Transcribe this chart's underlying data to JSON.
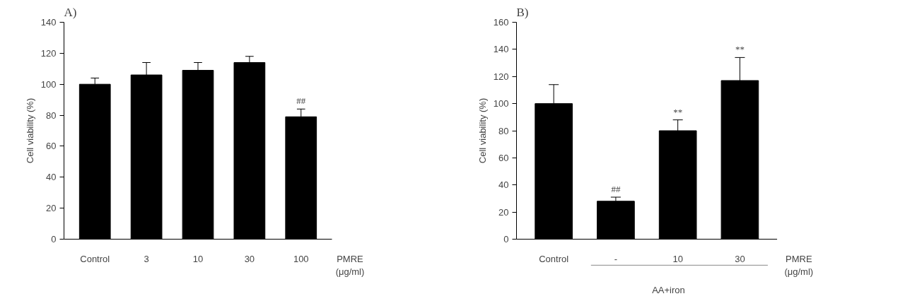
{
  "chart_data": [
    {
      "type": "bar",
      "title": "A)",
      "ylabel": "Cell viability (%)",
      "categories": [
        "Control",
        "3",
        "10",
        "30",
        "100"
      ],
      "values": [
        100,
        106,
        109,
        114,
        79
      ],
      "errors": [
        [
          100,
          104
        ],
        [
          106,
          114
        ],
        [
          109,
          114
        ],
        [
          114,
          118
        ],
        [
          79,
          84
        ]
      ],
      "color": "#000000",
      "ylim": [
        0,
        140
      ],
      "yticks": [
        0,
        20,
        40,
        60,
        80,
        100,
        120,
        140
      ],
      "grid": false,
      "annotations": [
        {
          "text": "##",
          "x": "100",
          "y": 84
        },
        "PMRE\n(μg/ml)"
      ]
    },
    {
      "type": "bar",
      "title": "B)",
      "ylabel": "Cell viability (%)",
      "categories": [
        "Control",
        "-",
        "10",
        "30"
      ],
      "values": [
        100,
        28,
        80,
        117
      ],
      "errors": [
        [
          100,
          114
        ],
        [
          28,
          31
        ],
        [
          80,
          88
        ],
        [
          117,
          134
        ]
      ],
      "color": "#000000",
      "ylim": [
        0,
        160
      ],
      "yticks": [
        0,
        20,
        40,
        60,
        80,
        100,
        120,
        140,
        160
      ],
      "grid": false,
      "annotations": [
        {
          "text": "##",
          "x": "-",
          "y": 31
        },
        {
          "text": "**",
          "x": "10",
          "y": 88
        },
        {
          "text": "**",
          "x": "30",
          "y": 134
        },
        "PMRE\n(μg/ml)",
        "AA+iron"
      ]
    }
  ]
}
